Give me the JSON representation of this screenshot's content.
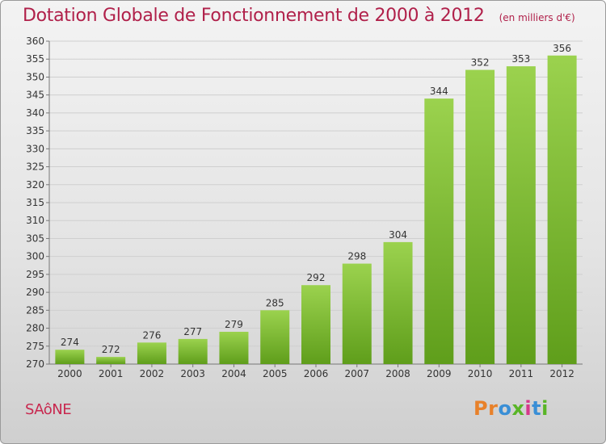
{
  "header": {
    "title": "Dotation Globale de Fonctionnement de 2000 à 2012",
    "unit": "(en milliers d'€)"
  },
  "footer": {
    "commune": "SAôNE",
    "logo_text": "Proxiti",
    "logo_colors": [
      "#e8812a",
      "#e8812a",
      "#3a8fd6",
      "#59b526",
      "#d6398a",
      "#3a8fd6",
      "#59b526"
    ]
  },
  "colors": {
    "title": "#b0204a",
    "bar_top": "#9bd24e",
    "bar_bottom": "#5f9e1b",
    "grid": "#cfcfcf"
  },
  "chart_data": {
    "type": "bar",
    "title": "Dotation Globale de Fonctionnement de 2000 à 2012",
    "subtitle": "(en milliers d'€)",
    "categories": [
      "2000",
      "2001",
      "2002",
      "2003",
      "2004",
      "2005",
      "2006",
      "2007",
      "2008",
      "2009",
      "2010",
      "2011",
      "2012"
    ],
    "values": [
      274,
      272,
      276,
      277,
      279,
      285,
      292,
      298,
      304,
      344,
      352,
      353,
      356
    ],
    "ylim": [
      270,
      360
    ],
    "ytick_step": 5,
    "grid": true,
    "data_labels": true
  }
}
